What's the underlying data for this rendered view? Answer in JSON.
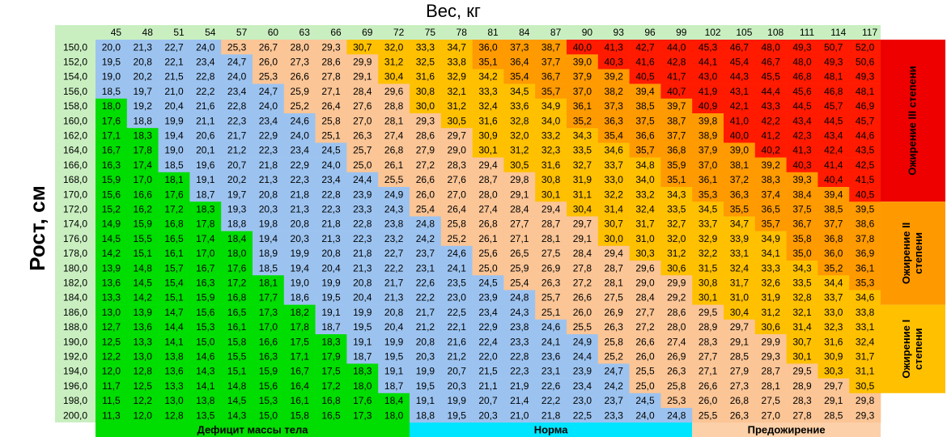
{
  "title": "Вес, кг",
  "y_label": "Рост, см",
  "weights": [
    45,
    48,
    51,
    54,
    57,
    60,
    63,
    66,
    69,
    72,
    75,
    78,
    81,
    84,
    87,
    90,
    93,
    96,
    99,
    102,
    105,
    108,
    111,
    114,
    117
  ],
  "zones": [
    {
      "name": "Дефицит массы тела",
      "color": "#00dd00",
      "bar_color": "#00dd00"
    },
    {
      "name": "Норма",
      "color": "#9cc3f0",
      "bar_color": "#00e5ff"
    },
    {
      "name": "Предожирение",
      "color": "#fbc596",
      "bar_color": "#fcd0a8"
    },
    {
      "label_lines": [
        "Ожирение I",
        "степени"
      ],
      "color": "#ffc000",
      "bar_color": "#ffc000"
    },
    {
      "label_lines": [
        "Ожирение II",
        "степени"
      ],
      "color": "#ff9a00",
      "bar_color": "#ff9900"
    },
    {
      "label_lines": [
        "Ожирение III степени"
      ],
      "color": "#ff1a00",
      "bar_color": "#ee0000"
    }
  ],
  "rows": [
    {
      "height": "150,0",
      "zone_counts": [
        0,
        4,
        4,
        4,
        3,
        10
      ],
      "values": [
        "20,0",
        "21,3",
        "22,7",
        "24,0",
        "25,3",
        "26,7",
        "28,0",
        "29,3",
        "30,7",
        "32,0",
        "33,3",
        "34,7",
        "36,0",
        "37,3",
        "38,7",
        "40,0",
        "41,3",
        "42,7",
        "44,0",
        "45,3",
        "46,7",
        "48,0",
        "49,3",
        "50,7",
        "52,0"
      ]
    },
    {
      "height": "152,0",
      "zone_counts": [
        0,
        5,
        4,
        3,
        4,
        9
      ],
      "values": [
        "19,5",
        "20,8",
        "22,1",
        "23,4",
        "24,7",
        "26,0",
        "27,3",
        "28,6",
        "29,9",
        "31,2",
        "32,5",
        "33,8",
        "35,1",
        "36,4",
        "37,7",
        "39,0",
        "40,3",
        "41,6",
        "42,8",
        "44,1",
        "45,4",
        "46,7",
        "48,0",
        "49,3",
        "50,6"
      ]
    },
    {
      "height": "154,0",
      "zone_counts": [
        0,
        5,
        4,
        4,
        4,
        8
      ],
      "values": [
        "19,0",
        "20,2",
        "21,5",
        "22,8",
        "24,0",
        "25,3",
        "26,6",
        "27,8",
        "29,1",
        "30,4",
        "31,6",
        "32,9",
        "34,2",
        "35,4",
        "36,7",
        "37,9",
        "39,2",
        "40,5",
        "41,7",
        "43,0",
        "44,3",
        "45,5",
        "46,8",
        "48,1",
        "49,3"
      ]
    },
    {
      "height": "156,0",
      "zone_counts": [
        0,
        6,
        4,
        4,
        4,
        7
      ],
      "values": [
        "18,5",
        "19,7",
        "21,0",
        "22,2",
        "23,4",
        "24,7",
        "25,9",
        "27,1",
        "28,4",
        "29,6",
        "30,8",
        "32,1",
        "33,3",
        "34,5",
        "35,7",
        "37,0",
        "38,2",
        "39,4",
        "40,7",
        "41,9",
        "43,1",
        "44,4",
        "45,6",
        "46,8",
        "48,1"
      ]
    },
    {
      "height": "158,0",
      "zone_counts": [
        1,
        5,
        4,
        5,
        4,
        6
      ],
      "values": [
        "18,0",
        "19,2",
        "20,4",
        "21,6",
        "22,8",
        "24,0",
        "25,2",
        "26,4",
        "27,6",
        "28,8",
        "30,0",
        "31,2",
        "32,4",
        "33,6",
        "34,9",
        "36,1",
        "37,3",
        "38,5",
        "39,7",
        "40,9",
        "42,1",
        "43,3",
        "44,5",
        "45,7",
        "46,9"
      ]
    },
    {
      "height": "160,0",
      "zone_counts": [
        1,
        6,
        4,
        4,
        5,
        5
      ],
      "values": [
        "17,6",
        "18,8",
        "19,9",
        "21,1",
        "22,3",
        "23,4",
        "24,6",
        "25,8",
        "27,0",
        "28,1",
        "29,3",
        "30,5",
        "31,6",
        "32,8",
        "34,0",
        "35,2",
        "36,3",
        "37,5",
        "38,7",
        "39,8",
        "41,0",
        "42,2",
        "43,4",
        "44,5",
        "45,7"
      ]
    },
    {
      "height": "162,0",
      "zone_counts": [
        2,
        5,
        5,
        4,
        4,
        5
      ],
      "values": [
        "17,1",
        "18,3",
        "19,4",
        "20,6",
        "21,7",
        "22,9",
        "24,0",
        "25,1",
        "26,3",
        "27,4",
        "28,6",
        "29,7",
        "30,9",
        "32,0",
        "33,2",
        "34,3",
        "35,4",
        "36,6",
        "37,7",
        "38,9",
        "40,0",
        "41,2",
        "42,3",
        "43,4",
        "44,6"
      ]
    },
    {
      "height": "164,0",
      "zone_counts": [
        2,
        6,
        4,
        5,
        4,
        4
      ],
      "values": [
        "16,7",
        "17,8",
        "19,0",
        "20,1",
        "21,2",
        "22,3",
        "23,4",
        "24,5",
        "25,7",
        "26,8",
        "27,9",
        "29,0",
        "30,1",
        "31,2",
        "32,3",
        "33,5",
        "34,6",
        "35,7",
        "36,8",
        "37,9",
        "39,0",
        "40,2",
        "41,3",
        "42,4",
        "43,5"
      ]
    },
    {
      "height": "166,0",
      "zone_counts": [
        2,
        6,
        5,
        5,
        4,
        3
      ],
      "values": [
        "16,3",
        "17,4",
        "18,5",
        "19,6",
        "20,7",
        "21,8",
        "22,9",
        "24,0",
        "25,0",
        "26,1",
        "27,2",
        "28,3",
        "29,4",
        "30,5",
        "31,6",
        "32,7",
        "33,7",
        "34,8",
        "35,9",
        "37,0",
        "38,1",
        "39,2",
        "40,3",
        "41,4",
        "42,5"
      ]
    },
    {
      "height": "168,0",
      "zone_counts": [
        3,
        6,
        5,
        4,
        5,
        2
      ],
      "values": [
        "15,9",
        "17,0",
        "18,1",
        "19,1",
        "20,2",
        "21,3",
        "22,3",
        "23,4",
        "24,4",
        "25,5",
        "26,6",
        "27,6",
        "28,7",
        "29,8",
        "30,8",
        "31,9",
        "33,0",
        "34,0",
        "35,1",
        "36,1",
        "37,2",
        "38,3",
        "39,3",
        "40,4",
        "41,5"
      ]
    },
    {
      "height": "170,0",
      "zone_counts": [
        3,
        7,
        4,
        5,
        5,
        1
      ],
      "values": [
        "15,6",
        "16,6",
        "17,6",
        "18,7",
        "19,7",
        "20,8",
        "21,8",
        "22,8",
        "23,9",
        "24,9",
        "26,0",
        "27,0",
        "28,0",
        "29,1",
        "30,1",
        "31,1",
        "32,2",
        "33,2",
        "34,3",
        "35,3",
        "36,3",
        "37,4",
        "38,4",
        "39,4",
        "40,5"
      ]
    },
    {
      "height": "172,0",
      "zone_counts": [
        4,
        6,
        5,
        5,
        5,
        0
      ],
      "values": [
        "15,2",
        "16,2",
        "17,2",
        "18,3",
        "19,3",
        "20,3",
        "21,3",
        "22,3",
        "23,3",
        "24,3",
        "25,4",
        "26,4",
        "27,4",
        "28,4",
        "29,4",
        "30,4",
        "31,4",
        "32,4",
        "33,5",
        "34,5",
        "35,5",
        "36,5",
        "37,5",
        "38,5",
        "39,5"
      ]
    },
    {
      "height": "174,0",
      "zone_counts": [
        4,
        7,
        5,
        5,
        4,
        0
      ],
      "values": [
        "14,9",
        "15,9",
        "16,8",
        "17,8",
        "18,8",
        "19,8",
        "20,8",
        "21,8",
        "22,8",
        "23,8",
        "24,8",
        "25,8",
        "26,8",
        "27,7",
        "28,7",
        "29,7",
        "30,7",
        "31,7",
        "32,7",
        "33,7",
        "34,7",
        "35,7",
        "36,7",
        "37,7",
        "38,6"
      ]
    },
    {
      "height": "176,0",
      "zone_counts": [
        5,
        6,
        5,
        6,
        3,
        0
      ],
      "values": [
        "14,5",
        "15,5",
        "16,5",
        "17,4",
        "18,4",
        "19,4",
        "20,3",
        "21,3",
        "22,3",
        "23,2",
        "24,2",
        "25,2",
        "26,1",
        "27,1",
        "28,1",
        "29,1",
        "30,0",
        "31,0",
        "32,0",
        "32,9",
        "33,9",
        "34,9",
        "35,8",
        "36,8",
        "37,8"
      ]
    },
    {
      "height": "178,0",
      "zone_counts": [
        5,
        7,
        5,
        5,
        3,
        0
      ],
      "values": [
        "14,2",
        "15,1",
        "16,1",
        "17,0",
        "18,0",
        "18,9",
        "19,9",
        "20,8",
        "21,8",
        "22,7",
        "23,7",
        "24,6",
        "25,6",
        "26,5",
        "27,5",
        "28,4",
        "29,4",
        "30,3",
        "31,2",
        "32,2",
        "33,1",
        "34,1",
        "35,0",
        "36,0",
        "36,9"
      ]
    },
    {
      "height": "180,0",
      "zone_counts": [
        5,
        7,
        6,
        5,
        2,
        0
      ],
      "values": [
        "13,9",
        "14,8",
        "15,7",
        "16,7",
        "17,6",
        "18,5",
        "19,4",
        "20,4",
        "21,3",
        "22,2",
        "23,1",
        "24,1",
        "25,0",
        "25,9",
        "26,9",
        "27,8",
        "28,7",
        "29,6",
        "30,6",
        "31,5",
        "32,4",
        "33,3",
        "34,3",
        "35,2",
        "36,1"
      ]
    },
    {
      "height": "182,0",
      "zone_counts": [
        6,
        7,
        6,
        5,
        1,
        0
      ],
      "values": [
        "13,6",
        "14,5",
        "15,4",
        "16,3",
        "17,2",
        "18,1",
        "19,0",
        "19,9",
        "20,8",
        "21,7",
        "22,6",
        "23,5",
        "24,5",
        "25,4",
        "26,3",
        "27,2",
        "28,1",
        "29,0",
        "29,9",
        "30,8",
        "31,7",
        "32,6",
        "33,5",
        "34,4",
        "35,3"
      ]
    },
    {
      "height": "184,0",
      "zone_counts": [
        6,
        8,
        5,
        6,
        0,
        0
      ],
      "values": [
        "13,3",
        "14,2",
        "15,1",
        "15,9",
        "16,8",
        "17,7",
        "18,6",
        "19,5",
        "20,4",
        "21,3",
        "22,2",
        "23,0",
        "23,9",
        "24,8",
        "25,7",
        "26,6",
        "27,5",
        "28,4",
        "29,2",
        "30,1",
        "31,0",
        "31,9",
        "32,8",
        "33,7",
        "34,6"
      ]
    },
    {
      "height": "186,0",
      "zone_counts": [
        7,
        7,
        6,
        5,
        0,
        0
      ],
      "values": [
        "13,0",
        "13,9",
        "14,7",
        "15,6",
        "16,5",
        "17,3",
        "18,2",
        "19,1",
        "19,9",
        "20,8",
        "21,7",
        "22,5",
        "23,4",
        "24,3",
        "25,1",
        "26,0",
        "26,9",
        "27,7",
        "28,6",
        "29,5",
        "30,4",
        "31,2",
        "32,1",
        "33,0",
        "33,8"
      ]
    },
    {
      "height": "188,0",
      "zone_counts": [
        7,
        8,
        6,
        4,
        0,
        0
      ],
      "values": [
        "12,7",
        "13,6",
        "14,4",
        "15,3",
        "16,1",
        "17,0",
        "17,8",
        "18,7",
        "19,5",
        "20,4",
        "21,2",
        "22,1",
        "22,9",
        "23,8",
        "24,6",
        "25,5",
        "26,3",
        "27,2",
        "28,0",
        "28,9",
        "29,7",
        "30,6",
        "31,4",
        "32,3",
        "33,1"
      ]
    },
    {
      "height": "190,0",
      "zone_counts": [
        8,
        8,
        6,
        3,
        0,
        0
      ],
      "values": [
        "12,5",
        "13,3",
        "14,1",
        "15,0",
        "15,8",
        "16,6",
        "17,5",
        "18,3",
        "19,1",
        "19,9",
        "20,8",
        "21,6",
        "22,4",
        "23,3",
        "24,1",
        "24,9",
        "25,8",
        "26,6",
        "27,4",
        "28,3",
        "29,1",
        "29,9",
        "30,7",
        "31,6",
        "32,4"
      ]
    },
    {
      "height": "192,0",
      "zone_counts": [
        8,
        8,
        6,
        3,
        0,
        0
      ],
      "values": [
        "12,2",
        "13,0",
        "13,8",
        "14,6",
        "15,5",
        "16,3",
        "17,1",
        "17,9",
        "18,7",
        "19,5",
        "20,3",
        "21,2",
        "22,0",
        "22,8",
        "23,6",
        "24,4",
        "25,2",
        "26,0",
        "26,9",
        "27,7",
        "28,5",
        "29,3",
        "30,1",
        "30,9",
        "31,7"
      ]
    },
    {
      "height": "194,0",
      "zone_counts": [
        9,
        8,
        6,
        2,
        0,
        0
      ],
      "values": [
        "12,0",
        "12,8",
        "13,6",
        "14,3",
        "15,1",
        "15,9",
        "16,7",
        "17,5",
        "18,3",
        "19,1",
        "19,9",
        "20,7",
        "21,5",
        "22,3",
        "23,1",
        "23,9",
        "24,7",
        "25,5",
        "26,3",
        "27,1",
        "27,9",
        "28,7",
        "29,5",
        "30,3",
        "31,1"
      ]
    },
    {
      "height": "196,0",
      "zone_counts": [
        9,
        8,
        7,
        1,
        0,
        0
      ],
      "values": [
        "11,7",
        "12,5",
        "13,3",
        "14,1",
        "14,8",
        "15,6",
        "16,4",
        "17,2",
        "18,0",
        "18,7",
        "19,5",
        "20,3",
        "21,1",
        "21,9",
        "22,6",
        "23,4",
        "24,2",
        "25,0",
        "25,8",
        "26,6",
        "27,3",
        "28,1",
        "28,9",
        "29,7",
        "30,5"
      ]
    },
    {
      "height": "198,0",
      "zone_counts": [
        10,
        8,
        7,
        0,
        0,
        0
      ],
      "values": [
        "11,5",
        "12,2",
        "13,0",
        "13,8",
        "14,5",
        "15,3",
        "16,1",
        "16,8",
        "17,6",
        "18,4",
        "19,1",
        "19,9",
        "20,7",
        "21,4",
        "22,2",
        "23,0",
        "23,7",
        "24,5",
        "25,3",
        "26,0",
        "26,8",
        "27,5",
        "28,3",
        "29,1",
        "29,8"
      ]
    },
    {
      "height": "200,0",
      "zone_counts": [
        10,
        9,
        6,
        0,
        0,
        0
      ],
      "values": [
        "11,3",
        "12,0",
        "12,8",
        "13,5",
        "14,3",
        "15,0",
        "15,8",
        "16,5",
        "17,3",
        "18,0",
        "18,8",
        "19,5",
        "20,3",
        "21,0",
        "21,8",
        "22,5",
        "23,3",
        "24,0",
        "24,8",
        "25,5",
        "26,3",
        "27,0",
        "27,8",
        "28,5",
        "29,3"
      ]
    }
  ]
}
